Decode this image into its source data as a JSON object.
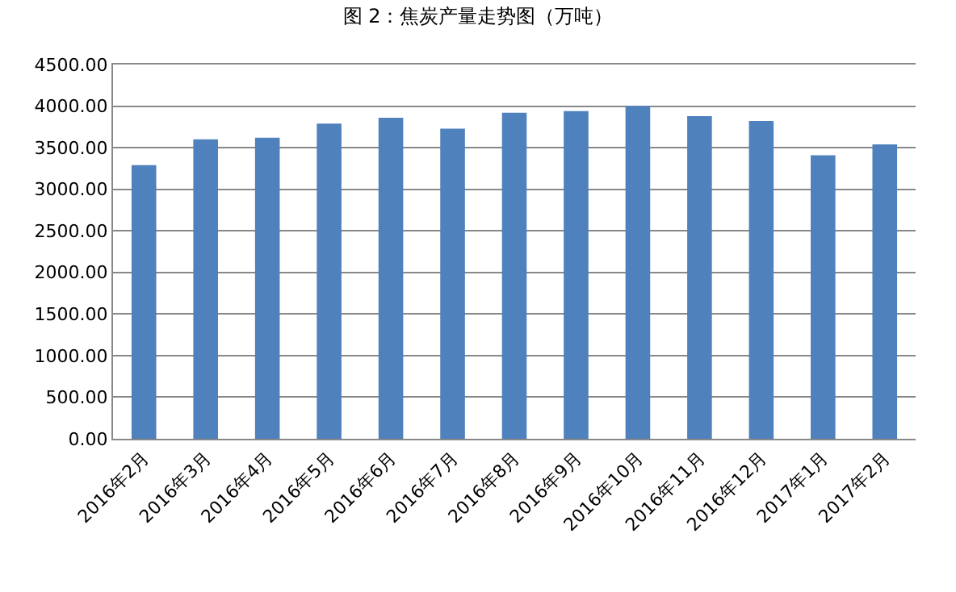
{
  "chart_data": {
    "type": "bar",
    "title": "图 2：焦炭产量走势图（万吨）",
    "categories": [
      "2016年2月",
      "2016年3月",
      "2016年4月",
      "2016年5月",
      "2016年6月",
      "2016年7月",
      "2016年8月",
      "2016年9月",
      "2016年10月",
      "2016年11月",
      "2016年12月",
      "2017年1月",
      "2017年2月"
    ],
    "values": [
      3290,
      3600,
      3620,
      3790,
      3860,
      3730,
      3920,
      3940,
      4000,
      3880,
      3820,
      3410,
      3540
    ],
    "color": "#4f81bd",
    "ylim": [
      0,
      4500
    ],
    "yticks": [
      {
        "value": 0,
        "label": "0.00"
      },
      {
        "value": 500,
        "label": "500.00"
      },
      {
        "value": 1000,
        "label": "1000.00"
      },
      {
        "value": 1500,
        "label": "1500.00"
      },
      {
        "value": 2000,
        "label": "2000.00"
      },
      {
        "value": 2500,
        "label": "2500.00"
      },
      {
        "value": 3000,
        "label": "3000.00"
      },
      {
        "value": 3500,
        "label": "3500.00"
      },
      {
        "value": 4000,
        "label": "4000.00"
      },
      {
        "value": 4500,
        "label": "4500.00"
      }
    ],
    "grid": "y"
  }
}
